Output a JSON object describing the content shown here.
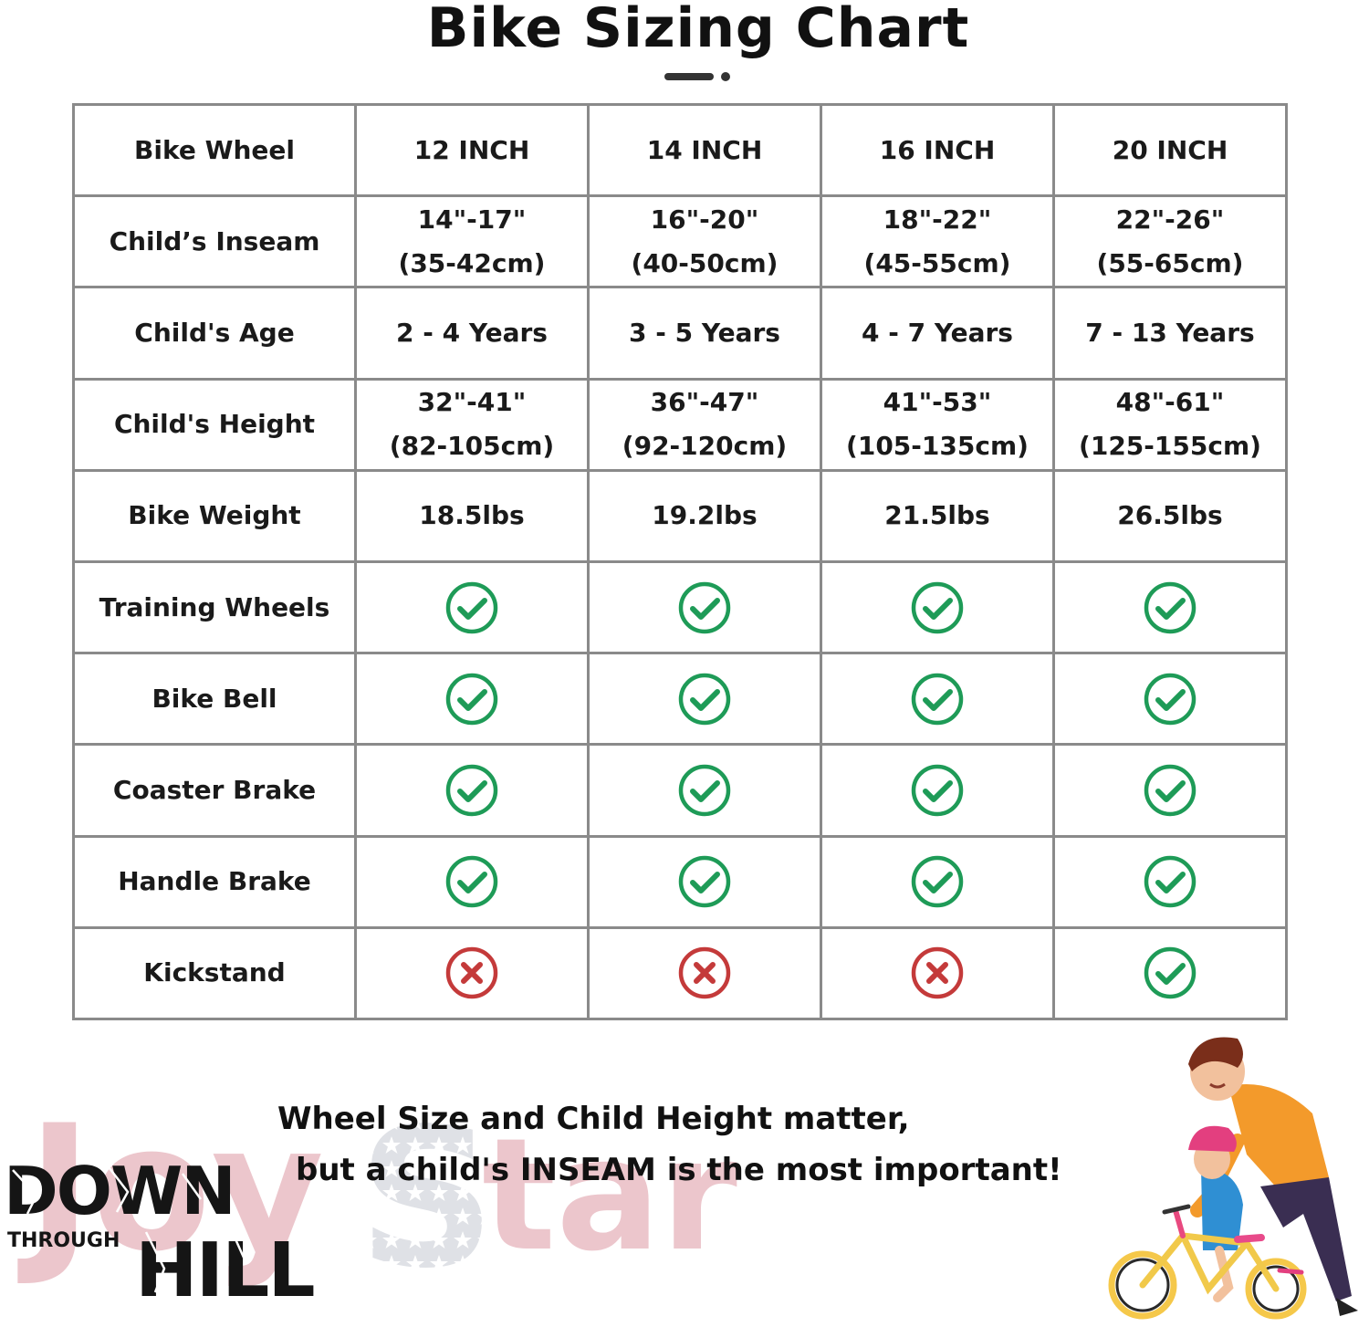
{
  "title": "Bike Sizing Chart",
  "table": {
    "rows": [
      {
        "label": "Bike Wheel",
        "cells": [
          {
            "lines": [
              "12 INCH"
            ]
          },
          {
            "lines": [
              "14 INCH"
            ]
          },
          {
            "lines": [
              "16 INCH"
            ]
          },
          {
            "lines": [
              "20 INCH"
            ]
          }
        ]
      },
      {
        "label": "Child’s Inseam",
        "cells": [
          {
            "lines": [
              "14\"-17\"",
              "(35-42cm)"
            ]
          },
          {
            "lines": [
              "16\"-20\"",
              "(40-50cm)"
            ]
          },
          {
            "lines": [
              "18\"-22\"",
              "(45-55cm)"
            ]
          },
          {
            "lines": [
              "22\"-26\"",
              "(55-65cm)"
            ]
          }
        ]
      },
      {
        "label": "Child's Age",
        "cells": [
          {
            "lines": [
              "2 - 4 Years"
            ]
          },
          {
            "lines": [
              "3 - 5 Years"
            ]
          },
          {
            "lines": [
              "4 - 7 Years"
            ]
          },
          {
            "lines": [
              "7 - 13 Years"
            ]
          }
        ]
      },
      {
        "label": "Child's Height",
        "cells": [
          {
            "lines": [
              "32\"-41\"",
              "(82-105cm)"
            ]
          },
          {
            "lines": [
              "36\"-47\"",
              "(92-120cm)"
            ]
          },
          {
            "lines": [
              "41\"-53\"",
              "(105-135cm)"
            ]
          },
          {
            "lines": [
              "48\"-61\"",
              "(125-155cm)"
            ]
          }
        ]
      },
      {
        "label": "Bike Weight",
        "cells": [
          {
            "lines": [
              "18.5lbs"
            ]
          },
          {
            "lines": [
              "19.2lbs"
            ]
          },
          {
            "lines": [
              "21.5lbs"
            ]
          },
          {
            "lines": [
              "26.5lbs"
            ]
          }
        ]
      },
      {
        "label": "Training Wheels",
        "cells": [
          {
            "mark": "check"
          },
          {
            "mark": "check"
          },
          {
            "mark": "check"
          },
          {
            "mark": "check"
          }
        ]
      },
      {
        "label": "Bike Bell",
        "cells": [
          {
            "mark": "check"
          },
          {
            "mark": "check"
          },
          {
            "mark": "check"
          },
          {
            "mark": "check"
          }
        ]
      },
      {
        "label": "Coaster Brake",
        "cells": [
          {
            "mark": "check"
          },
          {
            "mark": "check"
          },
          {
            "mark": "check"
          },
          {
            "mark": "check"
          }
        ]
      },
      {
        "label": "Handle Brake",
        "cells": [
          {
            "mark": "check"
          },
          {
            "mark": "check"
          },
          {
            "mark": "check"
          },
          {
            "mark": "check"
          }
        ]
      },
      {
        "label": "Kickstand",
        "cells": [
          {
            "mark": "cross"
          },
          {
            "mark": "cross"
          },
          {
            "mark": "cross"
          },
          {
            "mark": "check"
          }
        ]
      }
    ]
  },
  "marks": {
    "check": {
      "icon": "check-circle-icon",
      "color": "#1e9b57"
    },
    "cross": {
      "icon": "x-circle-icon",
      "color": "#c43a3a"
    }
  },
  "slogan": {
    "line1": "Wheel Size and Child Height matter,",
    "line2": "but a child's INSEAM is the most important!"
  },
  "brand": {
    "watermark": "JoyStar",
    "logo_top": "DOWN",
    "logo_small": "THROUGH",
    "logo_bottom": "HILL"
  },
  "colors": {
    "border": "#8a8a8a",
    "watermark_pink": "#ecc6cc",
    "star_gray": "#c9ccd3"
  }
}
